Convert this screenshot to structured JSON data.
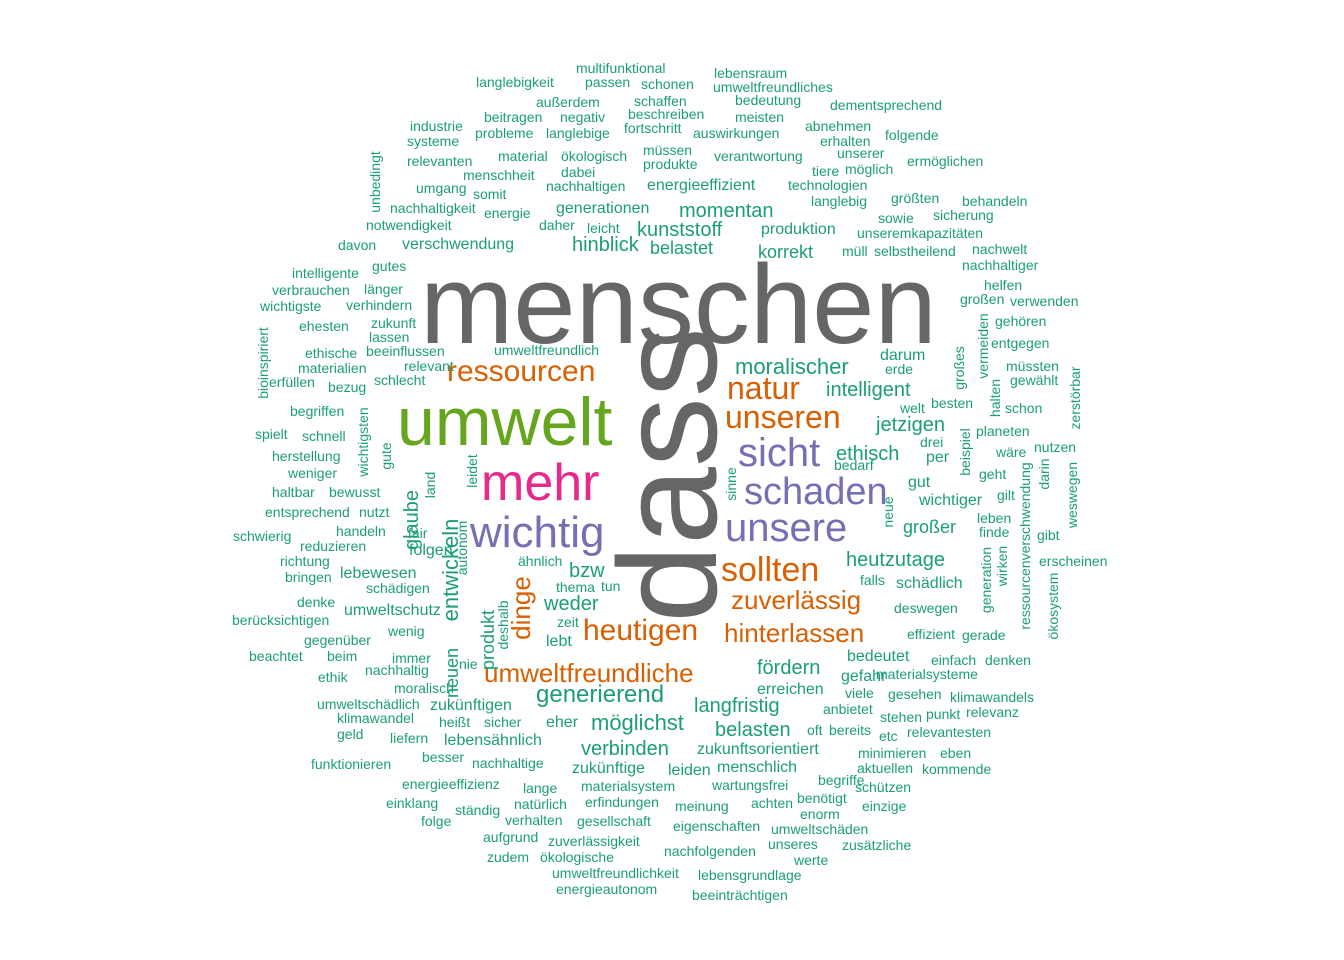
{
  "colors": {
    "gray": "#666666",
    "green": "#66a61e",
    "pink": "#e7298a",
    "purple": "#7570b3",
    "orange": "#d95f02",
    "teal": "#1b9e77"
  },
  "words": [
    {
      "text": "menschen",
      "color": "gray"
    },
    {
      "text": "dass",
      "color": "gray"
    },
    {
      "text": "umwelt",
      "color": "green"
    },
    {
      "text": "mehr",
      "color": "pink"
    },
    {
      "text": "wichtig",
      "color": "purple"
    },
    {
      "text": "sicht",
      "color": "purple"
    },
    {
      "text": "schaden",
      "color": "purple"
    },
    {
      "text": "unsere",
      "color": "purple"
    },
    {
      "text": "unseren",
      "color": "orange"
    },
    {
      "text": "natur",
      "color": "orange"
    },
    {
      "text": "ressourcen",
      "color": "orange"
    },
    {
      "text": "sollten",
      "color": "orange"
    },
    {
      "text": "zuverlässig",
      "color": "orange"
    },
    {
      "text": "heutigen",
      "color": "orange"
    },
    {
      "text": "hinterlassen",
      "color": "orange"
    },
    {
      "text": "umweltfreundliche",
      "color": "orange"
    },
    {
      "text": "dinge",
      "color": "orange"
    },
    {
      "text": "moralischer",
      "color": "teal"
    },
    {
      "text": "intelligent",
      "color": "teal"
    },
    {
      "text": "jetzigen",
      "color": "teal"
    },
    {
      "text": "ethisch",
      "color": "teal"
    },
    {
      "text": "per",
      "color": "teal"
    },
    {
      "text": "gut",
      "color": "teal"
    },
    {
      "text": "wichtiger",
      "color": "teal"
    },
    {
      "text": "großer",
      "color": "teal"
    },
    {
      "text": "heutzutage",
      "color": "teal"
    },
    {
      "text": "schädlich",
      "color": "teal"
    },
    {
      "text": "momentan",
      "color": "teal"
    },
    {
      "text": "kunststoff",
      "color": "teal"
    },
    {
      "text": "belastet",
      "color": "teal"
    },
    {
      "text": "produktion",
      "color": "teal"
    },
    {
      "text": "korrekt",
      "color": "teal"
    },
    {
      "text": "hinblick",
      "color": "teal"
    },
    {
      "text": "generationen",
      "color": "teal"
    },
    {
      "text": "energieeffizient",
      "color": "teal"
    },
    {
      "text": "verschwendung",
      "color": "teal"
    },
    {
      "text": "darum",
      "color": "teal"
    },
    {
      "text": "entwickeln",
      "color": "teal"
    },
    {
      "text": "glaube",
      "color": "teal"
    },
    {
      "text": "folgen",
      "color": "teal"
    },
    {
      "text": "lebewesen",
      "color": "teal"
    },
    {
      "text": "bzw",
      "color": "teal"
    },
    {
      "text": "weder",
      "color": "teal"
    },
    {
      "text": "produkt",
      "color": "teal"
    },
    {
      "text": "umweltschutz",
      "color": "teal"
    },
    {
      "text": "neuen",
      "color": "teal"
    },
    {
      "text": "lebt",
      "color": "teal"
    },
    {
      "text": "fördern",
      "color": "teal"
    },
    {
      "text": "bedeutet",
      "color": "teal"
    },
    {
      "text": "gefahr",
      "color": "teal"
    },
    {
      "text": "erreichen",
      "color": "teal"
    },
    {
      "text": "generierend",
      "color": "teal"
    },
    {
      "text": "langfristig",
      "color": "teal"
    },
    {
      "text": "belasten",
      "color": "teal"
    },
    {
      "text": "möglichst",
      "color": "teal"
    },
    {
      "text": "zukünftigen",
      "color": "teal"
    },
    {
      "text": "eher",
      "color": "teal"
    },
    {
      "text": "lebensähnlich",
      "color": "teal"
    },
    {
      "text": "verbinden",
      "color": "teal"
    },
    {
      "text": "zukunftsorientiert",
      "color": "teal"
    },
    {
      "text": "menschlich",
      "color": "teal"
    },
    {
      "text": "zukünftige",
      "color": "teal"
    },
    {
      "text": "leiden",
      "color": "teal"
    },
    {
      "text": "multifunktional",
      "color": "teal"
    },
    {
      "text": "langlebigkeit",
      "color": "teal"
    },
    {
      "text": "passen",
      "color": "teal"
    },
    {
      "text": "schonen",
      "color": "teal"
    },
    {
      "text": "lebensraum",
      "color": "teal"
    },
    {
      "text": "umweltfreundliches",
      "color": "teal"
    },
    {
      "text": "außerdem",
      "color": "teal"
    },
    {
      "text": "schaffen",
      "color": "teal"
    },
    {
      "text": "bedeutung",
      "color": "teal"
    },
    {
      "text": "dementsprechend",
      "color": "teal"
    },
    {
      "text": "beitragen",
      "color": "teal"
    },
    {
      "text": "negativ",
      "color": "teal"
    },
    {
      "text": "beschreiben",
      "color": "teal"
    },
    {
      "text": "meisten",
      "color": "teal"
    },
    {
      "text": "industrie",
      "color": "teal"
    },
    {
      "text": "probleme",
      "color": "teal"
    },
    {
      "text": "langlebige",
      "color": "teal"
    },
    {
      "text": "fortschritt",
      "color": "teal"
    },
    {
      "text": "auswirkungen",
      "color": "teal"
    },
    {
      "text": "abnehmen",
      "color": "teal"
    },
    {
      "text": "systeme",
      "color": "teal"
    },
    {
      "text": "erhalten",
      "color": "teal"
    },
    {
      "text": "folgende",
      "color": "teal"
    },
    {
      "text": "material",
      "color": "teal"
    },
    {
      "text": "ökologisch",
      "color": "teal"
    },
    {
      "text": "müssen",
      "color": "teal"
    },
    {
      "text": "verantwortung",
      "color": "teal"
    },
    {
      "text": "unserer",
      "color": "teal"
    },
    {
      "text": "relevanten",
      "color": "teal"
    },
    {
      "text": "produkte",
      "color": "teal"
    },
    {
      "text": "ermöglichen",
      "color": "teal"
    },
    {
      "text": "unbedingt",
      "color": "teal"
    },
    {
      "text": "menschheit",
      "color": "teal"
    },
    {
      "text": "dabei",
      "color": "teal"
    },
    {
      "text": "tiere",
      "color": "teal"
    },
    {
      "text": "möglich",
      "color": "teal"
    },
    {
      "text": "umgang",
      "color": "teal"
    },
    {
      "text": "nachhaltigen",
      "color": "teal"
    },
    {
      "text": "technologien",
      "color": "teal"
    },
    {
      "text": "somit",
      "color": "teal"
    },
    {
      "text": "langlebig",
      "color": "teal"
    },
    {
      "text": "größten",
      "color": "teal"
    },
    {
      "text": "nachhaltigkeit",
      "color": "teal"
    },
    {
      "text": "energie",
      "color": "teal"
    },
    {
      "text": "behandeln",
      "color": "teal"
    },
    {
      "text": "sowie",
      "color": "teal"
    },
    {
      "text": "sicherung",
      "color": "teal"
    },
    {
      "text": "notwendigkeit",
      "color": "teal"
    },
    {
      "text": "daher",
      "color": "teal"
    },
    {
      "text": "leicht",
      "color": "teal"
    },
    {
      "text": "unseremkapazitäten",
      "color": "teal"
    },
    {
      "text": "davon",
      "color": "teal"
    },
    {
      "text": "müll",
      "color": "teal"
    },
    {
      "text": "selbstheilend",
      "color": "teal"
    },
    {
      "text": "nachwelt",
      "color": "teal"
    },
    {
      "text": "gutes",
      "color": "teal"
    },
    {
      "text": "nachhaltiger",
      "color": "teal"
    },
    {
      "text": "intelligente",
      "color": "teal"
    },
    {
      "text": "verbrauchen",
      "color": "teal"
    },
    {
      "text": "länger",
      "color": "teal"
    },
    {
      "text": "helfen",
      "color": "teal"
    },
    {
      "text": "wichtigste",
      "color": "teal"
    },
    {
      "text": "verhindern",
      "color": "teal"
    },
    {
      "text": "großen",
      "color": "teal"
    },
    {
      "text": "verwenden",
      "color": "teal"
    },
    {
      "text": "zukunft",
      "color": "teal"
    },
    {
      "text": "gehören",
      "color": "teal"
    },
    {
      "text": "ehesten",
      "color": "teal"
    },
    {
      "text": "lassen",
      "color": "teal"
    },
    {
      "text": "bioinspiriert",
      "color": "teal"
    },
    {
      "text": "beeinflussen",
      "color": "teal"
    },
    {
      "text": "umweltfreundlich",
      "color": "teal"
    },
    {
      "text": "entgegen",
      "color": "teal"
    },
    {
      "text": "ethische",
      "color": "teal"
    },
    {
      "text": "vermeiden",
      "color": "teal"
    },
    {
      "text": "müssten",
      "color": "teal"
    },
    {
      "text": "materialien",
      "color": "teal"
    },
    {
      "text": "relevant",
      "color": "teal"
    },
    {
      "text": "erde",
      "color": "teal"
    },
    {
      "text": "großes",
      "color": "teal"
    },
    {
      "text": "erfüllen",
      "color": "teal"
    },
    {
      "text": "schlecht",
      "color": "teal"
    },
    {
      "text": "gewählt",
      "color": "teal"
    },
    {
      "text": "bezug",
      "color": "teal"
    },
    {
      "text": "zerstörbar",
      "color": "teal"
    },
    {
      "text": "halten",
      "color": "teal"
    },
    {
      "text": "besten",
      "color": "teal"
    },
    {
      "text": "begriffen",
      "color": "teal"
    },
    {
      "text": "welt",
      "color": "teal"
    },
    {
      "text": "schon",
      "color": "teal"
    },
    {
      "text": "wichtigsten",
      "color": "teal"
    },
    {
      "text": "spielt",
      "color": "teal"
    },
    {
      "text": "schnell",
      "color": "teal"
    },
    {
      "text": "drei",
      "color": "teal"
    },
    {
      "text": "planeten",
      "color": "teal"
    },
    {
      "text": "beispiel",
      "color": "teal"
    },
    {
      "text": "nutzen",
      "color": "teal"
    },
    {
      "text": "herstellung",
      "color": "teal"
    },
    {
      "text": "gute",
      "color": "teal"
    },
    {
      "text": "wäre",
      "color": "teal"
    },
    {
      "text": "bedarf",
      "color": "teal"
    },
    {
      "text": "weniger",
      "color": "teal"
    },
    {
      "text": "darin",
      "color": "teal"
    },
    {
      "text": "leidet",
      "color": "teal"
    },
    {
      "text": "haltbar",
      "color": "teal"
    },
    {
      "text": "bewusst",
      "color": "teal"
    },
    {
      "text": "land",
      "color": "teal"
    },
    {
      "text": "sinne",
      "color": "teal"
    },
    {
      "text": "geht",
      "color": "teal"
    },
    {
      "text": "entsprechend",
      "color": "teal"
    },
    {
      "text": "nutzt",
      "color": "teal"
    },
    {
      "text": "gilt",
      "color": "teal"
    },
    {
      "text": "weswegen",
      "color": "teal"
    },
    {
      "text": "neue",
      "color": "teal"
    },
    {
      "text": "leben",
      "color": "teal"
    },
    {
      "text": "schwierig",
      "color": "teal"
    },
    {
      "text": "handeln",
      "color": "teal"
    },
    {
      "text": "fair",
      "color": "teal"
    },
    {
      "text": "finde",
      "color": "teal"
    },
    {
      "text": "gibt",
      "color": "teal"
    },
    {
      "text": "autonom",
      "color": "teal"
    },
    {
      "text": "ähnlich",
      "color": "teal"
    },
    {
      "text": "richtung",
      "color": "teal"
    },
    {
      "text": "reduzieren",
      "color": "teal"
    },
    {
      "text": "generation",
      "color": "teal"
    },
    {
      "text": "wirken",
      "color": "teal"
    },
    {
      "text": "ressourcenverschwendung",
      "color": "teal"
    },
    {
      "text": "erscheinen",
      "color": "teal"
    },
    {
      "text": "bringen",
      "color": "teal"
    },
    {
      "text": "schädigen",
      "color": "teal"
    },
    {
      "text": "thema",
      "color": "teal"
    },
    {
      "text": "tun",
      "color": "teal"
    },
    {
      "text": "falls",
      "color": "teal"
    },
    {
      "text": "denke",
      "color": "teal"
    },
    {
      "text": "deshalb",
      "color": "teal"
    },
    {
      "text": "deswegen",
      "color": "teal"
    },
    {
      "text": "ökosystem",
      "color": "teal"
    },
    {
      "text": "berücksichtigen",
      "color": "teal"
    },
    {
      "text": "zeit",
      "color": "teal"
    },
    {
      "text": "gegenüber",
      "color": "teal"
    },
    {
      "text": "wenig",
      "color": "teal"
    },
    {
      "text": "effizient",
      "color": "teal"
    },
    {
      "text": "gerade",
      "color": "teal"
    },
    {
      "text": "beachtet",
      "color": "teal"
    },
    {
      "text": "beim",
      "color": "teal"
    },
    {
      "text": "immer",
      "color": "teal"
    },
    {
      "text": "nie",
      "color": "teal"
    },
    {
      "text": "einfach",
      "color": "teal"
    },
    {
      "text": "denken",
      "color": "teal"
    },
    {
      "text": "ethik",
      "color": "teal"
    },
    {
      "text": "nachhaltig",
      "color": "teal"
    },
    {
      "text": "materialsysteme",
      "color": "teal"
    },
    {
      "text": "moralisch",
      "color": "teal"
    },
    {
      "text": "viele",
      "color": "teal"
    },
    {
      "text": "umweltschädlich",
      "color": "teal"
    },
    {
      "text": "gesehen",
      "color": "teal"
    },
    {
      "text": "klimawandels",
      "color": "teal"
    },
    {
      "text": "anbietet",
      "color": "teal"
    },
    {
      "text": "klimawandel",
      "color": "teal"
    },
    {
      "text": "heißt",
      "color": "teal"
    },
    {
      "text": "sicher",
      "color": "teal"
    },
    {
      "text": "stehen",
      "color": "teal"
    },
    {
      "text": "punkt",
      "color": "teal"
    },
    {
      "text": "relevanz",
      "color": "teal"
    },
    {
      "text": "oft",
      "color": "teal"
    },
    {
      "text": "bereits",
      "color": "teal"
    },
    {
      "text": "geld",
      "color": "teal"
    },
    {
      "text": "liefern",
      "color": "teal"
    },
    {
      "text": "etc",
      "color": "teal"
    },
    {
      "text": "relevantesten",
      "color": "teal"
    },
    {
      "text": "besser",
      "color": "teal"
    },
    {
      "text": "minimieren",
      "color": "teal"
    },
    {
      "text": "eben",
      "color": "teal"
    },
    {
      "text": "funktionieren",
      "color": "teal"
    },
    {
      "text": "nachhaltige",
      "color": "teal"
    },
    {
      "text": "aktuellen",
      "color": "teal"
    },
    {
      "text": "kommende",
      "color": "teal"
    },
    {
      "text": "energieeffizienz",
      "color": "teal"
    },
    {
      "text": "wartungsfrei",
      "color": "teal"
    },
    {
      "text": "begriffe",
      "color": "teal"
    },
    {
      "text": "lange",
      "color": "teal"
    },
    {
      "text": "materialsystem",
      "color": "teal"
    },
    {
      "text": "schützen",
      "color": "teal"
    },
    {
      "text": "einklang",
      "color": "teal"
    },
    {
      "text": "natürlich",
      "color": "teal"
    },
    {
      "text": "erfindungen",
      "color": "teal"
    },
    {
      "text": "achten",
      "color": "teal"
    },
    {
      "text": "benötigt",
      "color": "teal"
    },
    {
      "text": "einzige",
      "color": "teal"
    },
    {
      "text": "ständig",
      "color": "teal"
    },
    {
      "text": "meinung",
      "color": "teal"
    },
    {
      "text": "enorm",
      "color": "teal"
    },
    {
      "text": "folge",
      "color": "teal"
    },
    {
      "text": "verhalten",
      "color": "teal"
    },
    {
      "text": "gesellschaft",
      "color": "teal"
    },
    {
      "text": "eigenschaften",
      "color": "teal"
    },
    {
      "text": "umweltschäden",
      "color": "teal"
    },
    {
      "text": "aufgrund",
      "color": "teal"
    },
    {
      "text": "zuverlässigkeit",
      "color": "teal"
    },
    {
      "text": "unseres",
      "color": "teal"
    },
    {
      "text": "zusätzliche",
      "color": "teal"
    },
    {
      "text": "zudem",
      "color": "teal"
    },
    {
      "text": "ökologische",
      "color": "teal"
    },
    {
      "text": "nachfolgenden",
      "color": "teal"
    },
    {
      "text": "werte",
      "color": "teal"
    },
    {
      "text": "umweltfreundlichkeit",
      "color": "teal"
    },
    {
      "text": "lebensgrundlage",
      "color": "teal"
    },
    {
      "text": "energieautonom",
      "color": "teal"
    },
    {
      "text": "beeinträchtigen",
      "color": "teal"
    }
  ]
}
